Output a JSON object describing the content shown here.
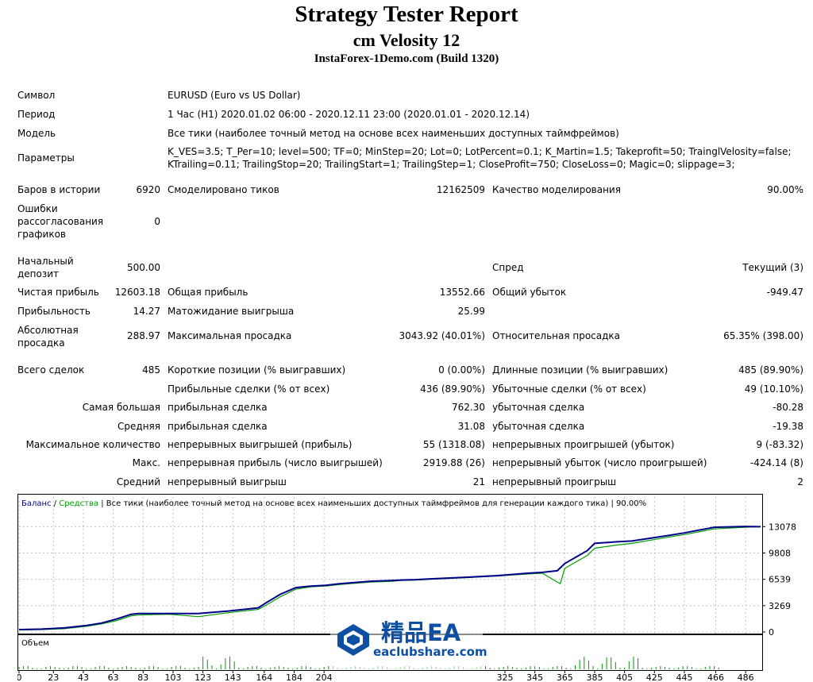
{
  "report": {
    "title": "Strategy Tester Report",
    "expert": "cm Velosity 12",
    "server": "InstaForex-1Demo.com (Build 1320)"
  },
  "info": {
    "symbol_label": "Символ",
    "symbol_value": "EURUSD (Euro vs US Dollar)",
    "period_label": "Период",
    "period_value": "1 Час (H1) 2020.01.02 06:00 - 2020.12.11 23:00 (2020.01.01 - 2020.12.14)",
    "model_label": "Модель",
    "model_value": "Все тики (наиболее точный метод на основе всех наименьших доступных таймфреймов)",
    "params_label": "Параметры",
    "params_line1": "K_VES=3.5; T_Per=10; level=500; TF=0; MinStep=20; Lot=0; LotPercent=0.1; K_Martin=1.5; Takeprofit=50; TrainglVelosity=false;",
    "params_line2": "KTrailing=0.11; TrailingStop=20; TrailingStart=1; TrailingStep=1; CloseProfit=750; CloseLoss=0; Magic=0; slippage=3;"
  },
  "stats": {
    "bars_label": "Баров в истории",
    "bars_value": "6920",
    "ticks_label": "Смоделировано тиков",
    "ticks_value": "12162509",
    "quality_label": "Качество моделирования",
    "quality_value": "90.00%",
    "mismatch_label": "Ошибки рассогласования графиков",
    "mismatch_value": "0",
    "deposit_label": "Начальный депозит",
    "deposit_value": "500.00",
    "spread_label": "Спред",
    "spread_value": "Текущий (3)",
    "net_label": "Чистая прибыль",
    "net_value": "12603.18",
    "gross_profit_label": "Общая прибыль",
    "gross_profit_value": "13552.66",
    "gross_loss_label": "Общий убыток",
    "gross_loss_value": "-949.47",
    "pf_label": "Прибыльность",
    "pf_value": "14.27",
    "expected_label": "Матожидание выигрыша",
    "expected_value": "25.99",
    "abs_dd_label": "Абсолютная просадка",
    "abs_dd_value": "288.97",
    "max_dd_label": "Максимальная просадка",
    "max_dd_value": "3043.92 (40.01%)",
    "rel_dd_label": "Относительная просадка",
    "rel_dd_value": "65.35% (398.00)",
    "total_label": "Всего сделок",
    "total_value": "485",
    "short_label": "Короткие позиции (% выигравших)",
    "short_value": "0 (0.00%)",
    "long_label": "Длинные позиции (% выигравших)",
    "long_value": "485 (89.90%)",
    "profit_trades_label": "Прибыльные сделки (% от всех)",
    "profit_trades_value": "436 (89.90%)",
    "loss_trades_label": "Убыточные сделки (% от всех)",
    "loss_trades_value": "49 (10.10%)",
    "largest_label": "Самая большая",
    "largest_profit_label": "прибыльная сделка",
    "largest_profit_value": "762.30",
    "largest_loss_label": "убыточная сделка",
    "largest_loss_value": "-80.28",
    "average_label": "Средняя",
    "avg_profit_label": "прибыльная сделка",
    "avg_profit_value": "31.08",
    "avg_loss_label": "убыточная сделка",
    "avg_loss_value": "-19.38",
    "max_count_label": "Максимальное количество",
    "max_cons_wins_label": "непрерывных выигрышей (прибыль)",
    "max_cons_wins_value": "55 (1318.08)",
    "max_cons_losses_label": "непрерывных проигрышей (убыток)",
    "max_cons_losses_value": "9 (-83.32)",
    "max_label": "Макс.",
    "max_cons_profit_label": "непрерывная прибыль (число выигрышей)",
    "max_cons_profit_value": "2919.88 (26)",
    "max_cons_loss_label": "непрерывный убыток (число проигрышей)",
    "max_cons_loss_value": "-424.14 (8)",
    "avg_cons_label": "Средний",
    "avg_cons_wins_label": "непрерывный выигрыш",
    "avg_cons_wins_value": "21",
    "avg_cons_losses_label": "непрерывный проигрыш",
    "avg_cons_losses_value": "2"
  },
  "chart_data": {
    "type": "line",
    "legend": {
      "balance": "Баланс",
      "sep1": " / ",
      "equity": "Средства",
      "rest": " | Все тики (наиболее точный метод на основе всех наименьших доступных таймфреймов для генерации каждого тика) | 90.00%"
    },
    "volume_label": "Объем",
    "ylim": [
      0,
      14000
    ],
    "yticks": [
      "13078",
      "9808",
      "6539",
      "3269",
      "0"
    ],
    "ytick_values": [
      13078,
      9808,
      6539,
      3269,
      0
    ],
    "xlim": [
      0,
      496
    ],
    "xticks": [
      "0",
      "23",
      "43",
      "63",
      "83",
      "103",
      "123",
      "143",
      "164",
      "184",
      "204",
      "325",
      "345",
      "365",
      "385",
      "405",
      "425",
      "445",
      "466",
      "486"
    ],
    "xtick_values": [
      0,
      23,
      43,
      63,
      83,
      103,
      123,
      143,
      164,
      184,
      204,
      325,
      345,
      365,
      385,
      405,
      425,
      445,
      466,
      486
    ],
    "series": [
      {
        "name": "Баланс",
        "color": "#00008b",
        "x": [
          0,
          15,
          30,
          45,
          55,
          65,
          75,
          80,
          100,
          120,
          140,
          160,
          165,
          175,
          185,
          195,
          205,
          215,
          235,
          250,
          255,
          265,
          275,
          300,
          320,
          340,
          350,
          360,
          365,
          380,
          385,
          400,
          410,
          435,
          445,
          465,
          485,
          496
        ],
        "y": [
          300,
          350,
          500,
          800,
          1100,
          1600,
          2200,
          2300,
          2300,
          2300,
          2600,
          3000,
          3600,
          4700,
          5500,
          5700,
          5800,
          6000,
          6300,
          6400,
          6450,
          6500,
          6600,
          6800,
          7000,
          7300,
          7400,
          7600,
          8500,
          10100,
          11000,
          11200,
          11300,
          12000,
          12300,
          13000,
          13100,
          13078
        ]
      },
      {
        "name": "Средства",
        "color": "#00a000",
        "x": [
          0,
          15,
          30,
          45,
          55,
          65,
          75,
          80,
          100,
          120,
          140,
          160,
          165,
          175,
          185,
          195,
          205,
          215,
          235,
          250,
          255,
          265,
          275,
          300,
          320,
          340,
          350,
          360,
          362,
          365,
          380,
          385,
          400,
          410,
          435,
          445,
          465,
          485,
          496
        ],
        "y": [
          250,
          300,
          400,
          700,
          1000,
          1400,
          2000,
          2100,
          2200,
          1900,
          2400,
          2800,
          3300,
          4400,
          5300,
          5600,
          5700,
          5900,
          6200,
          6300,
          6400,
          6450,
          6550,
          6750,
          6950,
          7200,
          7300,
          6200,
          6000,
          7900,
          9500,
          10400,
          10800,
          11000,
          11800,
          12100,
          12800,
          13000,
          13078
        ]
      }
    ],
    "colors": {
      "balance": "#00008b",
      "equity": "#00a000",
      "volume": "#00a000",
      "frame": "#000000"
    }
  },
  "watermark": {
    "text_main": "精品EA",
    "text_site": "eaclubshare.com"
  }
}
